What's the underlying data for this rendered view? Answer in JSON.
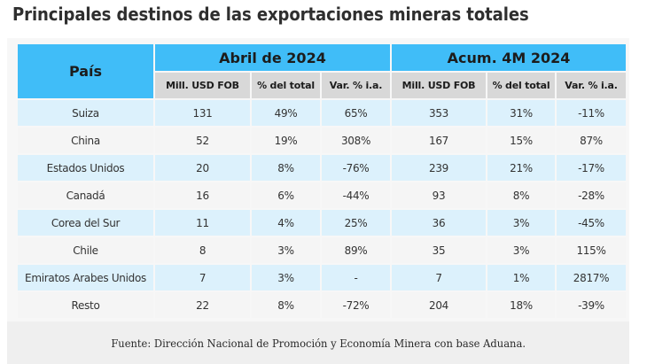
{
  "title": "Principales destinos de las exportaciones mineras totales",
  "table": {
    "country_header": "País",
    "groups": [
      {
        "label": "Abril de 2024",
        "columns": [
          "Mill. USD FOB",
          "% del total",
          "Var. % i.a."
        ]
      },
      {
        "label": "Acum. 4M 2024",
        "columns": [
          "Mill. USD FOB",
          "% del total",
          "Var. % i.a."
        ]
      }
    ],
    "rows": [
      {
        "country": "Suiza",
        "values": [
          "131",
          "49%",
          "65%",
          "353",
          "31%",
          "-11%"
        ]
      },
      {
        "country": "China",
        "values": [
          "52",
          "19%",
          "308%",
          "167",
          "15%",
          "87%"
        ]
      },
      {
        "country": "Estados Unidos",
        "values": [
          "20",
          "8%",
          "-76%",
          "239",
          "21%",
          "-17%"
        ]
      },
      {
        "country": "Canadá",
        "values": [
          "16",
          "6%",
          "-44%",
          "93",
          "8%",
          "-28%"
        ]
      },
      {
        "country": "Corea del Sur",
        "values": [
          "11",
          "4%",
          "25%",
          "36",
          "3%",
          "-45%"
        ]
      },
      {
        "country": "Chile",
        "values": [
          "8",
          "3%",
          "89%",
          "35",
          "3%",
          "115%"
        ]
      },
      {
        "country": "Emiratos Arabes Unidos",
        "values": [
          "7",
          "3%",
          "-",
          "7",
          "1%",
          "2817%"
        ]
      },
      {
        "country": "Resto",
        "values": [
          "22",
          "8%",
          "-72%",
          "204",
          "18%",
          "-39%"
        ]
      }
    ]
  },
  "footer": "Fuente: Dirección Nacional de Promoción y Economía Minera con base Aduana.",
  "colors": {
    "header_blue": "#40bdf8",
    "subheader_gray": "#d8d8d8",
    "row_light_blue": "#dcf1fc",
    "row_light_gray": "#f5f5f5"
  }
}
